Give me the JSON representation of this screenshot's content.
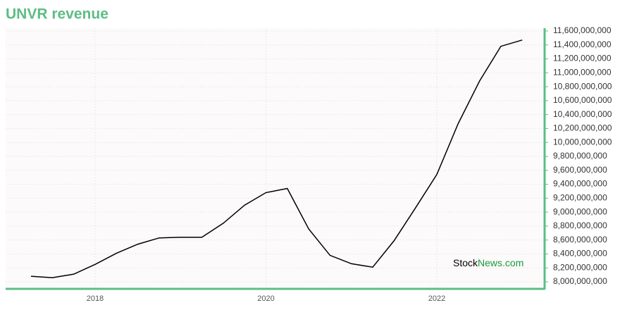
{
  "chart_data": {
    "type": "line",
    "title": "UNVR revenue",
    "watermark": [
      "Stock",
      "News.com"
    ],
    "x": [
      2017.25,
      2017.5,
      2017.75,
      2018,
      2018.25,
      2018.5,
      2018.75,
      2019,
      2019.25,
      2019.5,
      2019.75,
      2020,
      2020.25,
      2020.5,
      2020.75,
      2021,
      2021.25,
      2021.5,
      2021.75,
      2022,
      2022.25,
      2022.5,
      2022.75,
      2023
    ],
    "series": [
      {
        "name": "revenue",
        "color": "#000000",
        "values": [
          8080000000,
          8060000000,
          8110000000,
          8250000000,
          8410000000,
          8540000000,
          8630000000,
          8640000000,
          8640000000,
          8840000000,
          9100000000,
          9280000000,
          9340000000,
          8760000000,
          8380000000,
          8260000000,
          8210000000,
          8590000000,
          9060000000,
          9540000000,
          10270000000,
          10880000000,
          11380000000,
          11470000000
        ]
      }
    ],
    "xlim": [
      2016.953,
      2023.262
    ],
    "xticks": [
      2018,
      2020,
      2022
    ],
    "ylim": [
      7899000000,
      11640000000
    ],
    "yticks": [
      {
        "value": 8000000000,
        "label": "8,000,000,000"
      },
      {
        "value": 8200000000,
        "label": "8,200,000,000"
      },
      {
        "value": 8400000000,
        "label": "8,400,000,000"
      },
      {
        "value": 8600000000,
        "label": "8,600,000,000"
      },
      {
        "value": 8800000000,
        "label": "8,800,000,000"
      },
      {
        "value": 9000000000,
        "label": "9,000,000,000"
      },
      {
        "value": 9200000000,
        "label": "9,200,000,000"
      },
      {
        "value": 9400000000,
        "label": "9,400,000,000"
      },
      {
        "value": 9600000000,
        "label": "9,600,000,000"
      },
      {
        "value": 9800000000,
        "label": "9,800,000,000"
      },
      {
        "value": 10000000000,
        "label": "10,000,000,000"
      },
      {
        "value": 10200000000,
        "label": "10,200,000,000"
      },
      {
        "value": 10400000000,
        "label": "10,400,000,000"
      },
      {
        "value": 10600000000,
        "label": "10,600,000,000"
      },
      {
        "value": 10800000000,
        "label": "10,800,000,000"
      },
      {
        "value": 11000000000,
        "label": "11,000,000,000"
      },
      {
        "value": 11200000000,
        "label": "11,200,000,000"
      },
      {
        "value": 11400000000,
        "label": "11,400,000,000"
      },
      {
        "value": 11600000000,
        "label": "11,600,000,000"
      }
    ],
    "grid": true,
    "axis_color": "#5cbd84"
  }
}
